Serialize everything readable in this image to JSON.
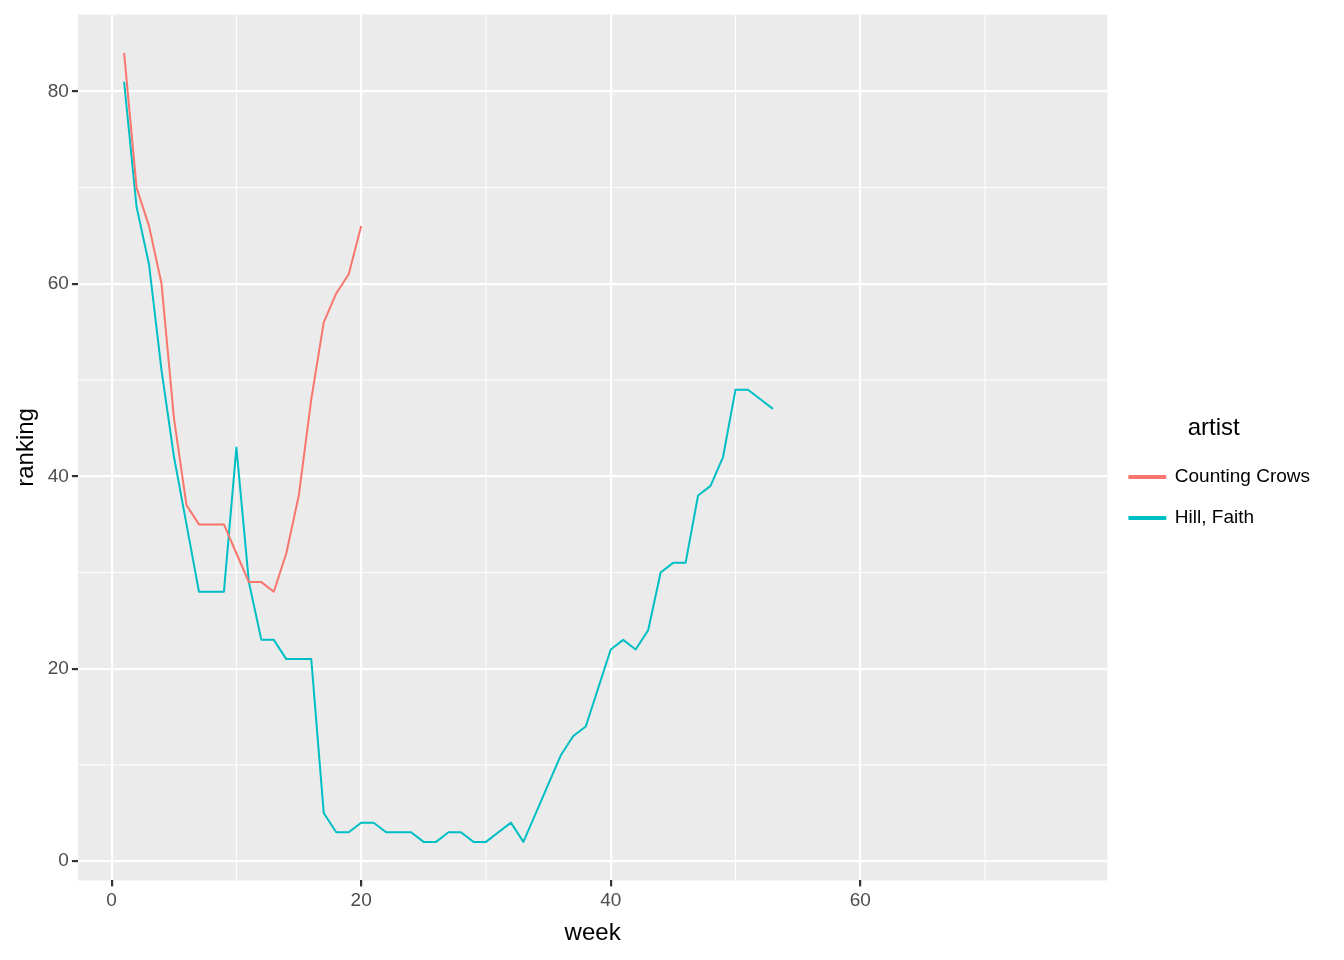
{
  "chart_data": {
    "type": "line",
    "xlabel": "week",
    "ylabel": "ranking",
    "legend_title": "artist",
    "legend": "right",
    "grid": true,
    "marker": "none",
    "line_style": "solid",
    "xlim": [
      -2.7,
      79.8
    ],
    "xticks": [
      0,
      20,
      40,
      60
    ],
    "ylim": [
      -2,
      88
    ],
    "yticks": [
      0,
      20,
      40,
      60,
      80
    ],
    "series": [
      {
        "name": "Counting Crows",
        "color": "#f8766d",
        "x": [
          1,
          2,
          3,
          4,
          5,
          6,
          7,
          8,
          9,
          10,
          11,
          12,
          13,
          14,
          15,
          16,
          17,
          18,
          19,
          20
        ],
        "values": [
          84,
          70,
          66,
          60,
          46,
          37,
          35,
          35,
          35,
          32,
          29,
          29,
          28,
          32,
          38,
          48,
          56,
          59,
          61,
          66
        ]
      },
      {
        "name": "Hill, Faith",
        "color": "#00bfc4",
        "x": [
          1,
          2,
          3,
          4,
          5,
          6,
          7,
          8,
          9,
          10,
          11,
          12,
          13,
          14,
          15,
          16,
          17,
          18,
          19,
          20,
          21,
          22,
          23,
          24,
          25,
          26,
          27,
          28,
          29,
          30,
          31,
          32,
          33,
          34,
          35,
          36,
          37,
          38,
          39,
          40,
          41,
          42,
          43,
          44,
          45,
          46,
          47,
          48,
          49,
          50,
          51,
          52,
          53
        ],
        "values": [
          81,
          68,
          62,
          51,
          42,
          35,
          28,
          28,
          28,
          43,
          29,
          23,
          23,
          21,
          21,
          21,
          5,
          3,
          3,
          4,
          4,
          3,
          3,
          3,
          2,
          2,
          3,
          3,
          2,
          2,
          3,
          4,
          2,
          5,
          8,
          11,
          13,
          14,
          18,
          22,
          23,
          22,
          24,
          30,
          31,
          31,
          38,
          39,
          42,
          49,
          49,
          48,
          47
        ]
      }
    ]
  }
}
